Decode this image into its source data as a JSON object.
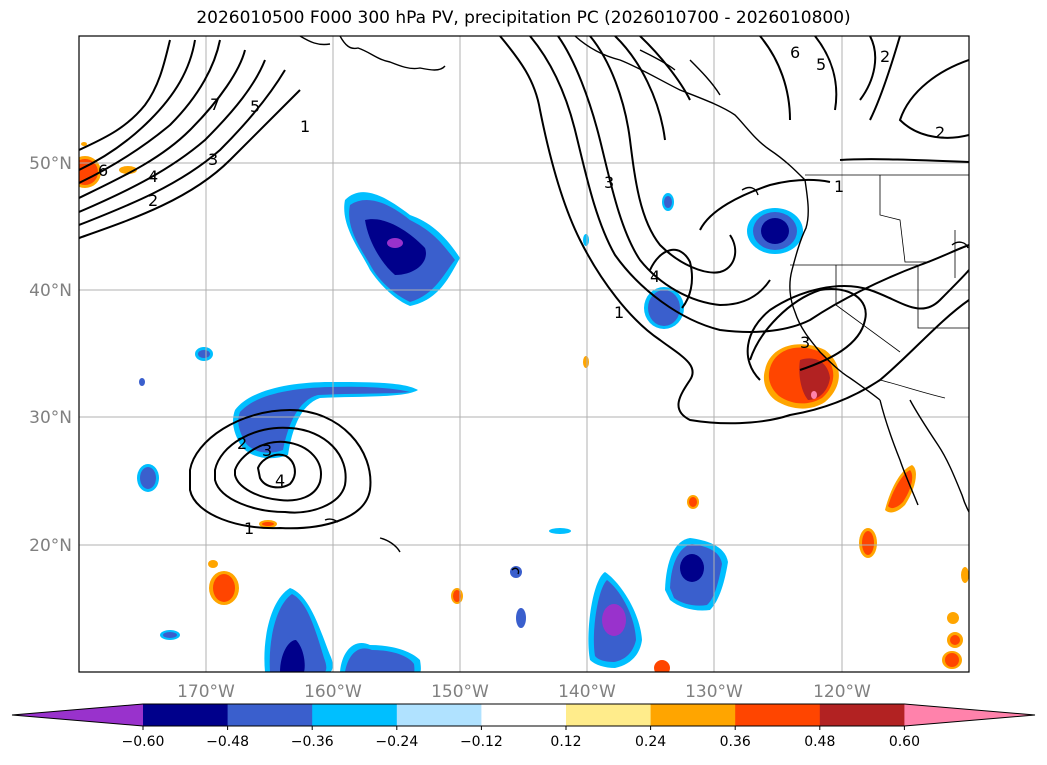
{
  "title": "2026010500 F000 300 hPa PV, precipitation PC (2026010700 - 2026010800)",
  "map": {
    "lat_labels": [
      "50°N",
      "40°N",
      "30°N",
      "20°N"
    ],
    "lon_labels": [
      "170°W",
      "160°W",
      "150°W",
      "140°W",
      "130°W",
      "120°W"
    ],
    "contour_labels": [
      "1",
      "2",
      "3",
      "4",
      "5",
      "6",
      "7",
      "1",
      "2",
      "3",
      "4",
      "5",
      "6",
      "1",
      "2",
      "3",
      "1",
      "2",
      "3",
      "4"
    ]
  },
  "colorbar": {
    "ticks": [
      "−0.60",
      "−0.48",
      "−0.36",
      "−0.24",
      "−0.12",
      "0.12",
      "0.24",
      "0.36",
      "0.48",
      "0.60"
    ],
    "colors": [
      "#9932cc",
      "#00008b",
      "#3a5fcd",
      "#00bfff",
      "#b0e2ff",
      "#ffffff",
      "#ffec8b",
      "#ffa500",
      "#ff4500",
      "#b22222",
      "#ff82ab"
    ]
  }
}
